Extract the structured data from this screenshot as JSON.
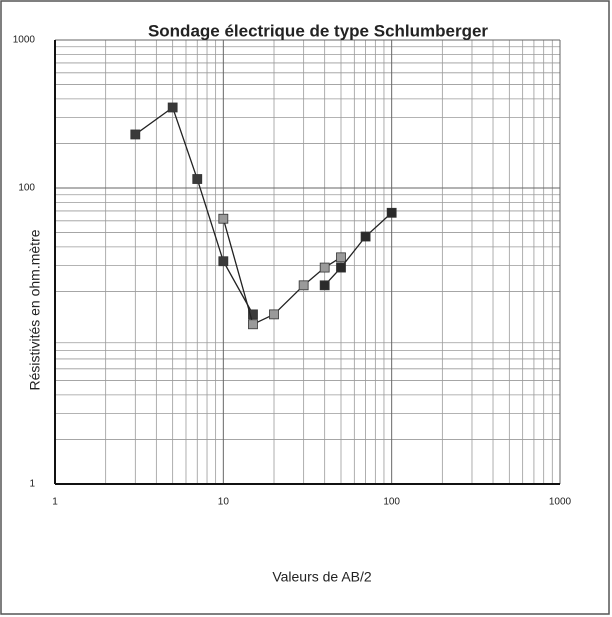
{
  "chart_data": {
    "type": "line",
    "title": "Sondage électrique de type Schlumberger",
    "x_label": "Valeurs de AB/2",
    "y_label": "Résistivités en ohm.mètre",
    "log_x": true,
    "log_y": true,
    "grid": true,
    "xlim": [
      1,
      1000
    ],
    "ylim": [
      1,
      1000
    ],
    "xticks": [
      1,
      10,
      100,
      1000
    ],
    "yticks": [
      1,
      100,
      1000
    ],
    "series": [
      {
        "color": "#3a3a3a",
        "x": [
          3,
          5,
          7,
          10,
          15
        ],
        "values": [
          230,
          350,
          115,
          32,
          14
        ]
      },
      {
        "color": "#9a9a9a",
        "x": [
          10,
          15,
          20,
          30,
          40,
          50
        ],
        "values": [
          62,
          12,
          14,
          22,
          29,
          34
        ]
      },
      {
        "color": "#2a2a2a",
        "x": [
          40,
          50,
          70,
          100
        ],
        "values": [
          22,
          29,
          47,
          68
        ]
      }
    ]
  }
}
